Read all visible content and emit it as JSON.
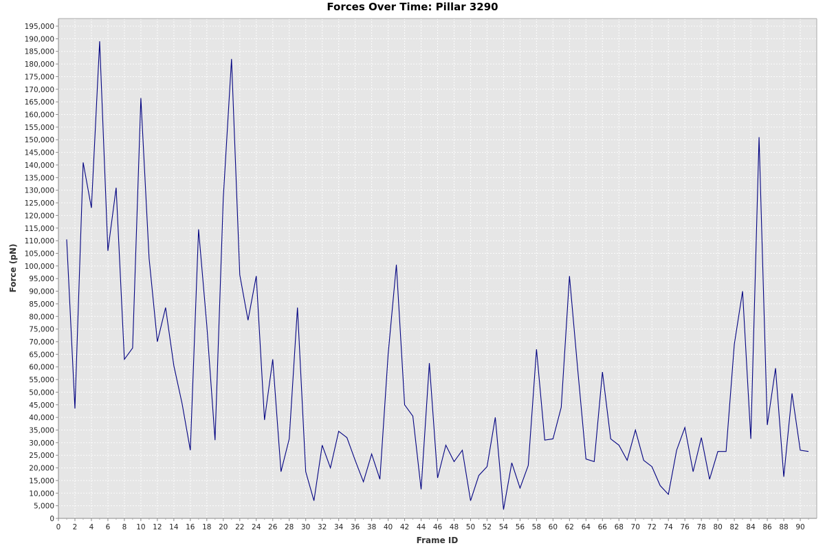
{
  "chart_data": {
    "type": "line",
    "title": "Forces Over Time: Pillar 3290",
    "xlabel": "Frame ID",
    "ylabel": "Force (pN)",
    "xlim": [
      0,
      92
    ],
    "ylim": [
      0,
      198000
    ],
    "x_ticks": [
      0,
      2,
      4,
      6,
      8,
      10,
      12,
      14,
      16,
      18,
      20,
      22,
      24,
      26,
      28,
      30,
      32,
      34,
      36,
      38,
      40,
      42,
      44,
      46,
      48,
      50,
      52,
      54,
      56,
      58,
      60,
      62,
      64,
      66,
      68,
      70,
      72,
      74,
      76,
      78,
      80,
      82,
      84,
      86,
      88,
      90
    ],
    "y_ticks": [
      0,
      5000,
      10000,
      15000,
      20000,
      25000,
      30000,
      35000,
      40000,
      45000,
      50000,
      55000,
      60000,
      65000,
      70000,
      75000,
      80000,
      85000,
      90000,
      95000,
      100000,
      105000,
      110000,
      115000,
      120000,
      125000,
      130000,
      135000,
      140000,
      145000,
      150000,
      155000,
      160000,
      165000,
      170000,
      175000,
      180000,
      185000,
      190000,
      195000
    ],
    "grid": true,
    "colors": {
      "line": "#000080",
      "plot_bg": "#e6e6e6",
      "grid": "#ffffff"
    },
    "series": [
      {
        "name": "",
        "x": [
          1,
          2,
          3,
          4,
          5,
          6,
          7,
          8,
          9,
          10,
          11,
          12,
          13,
          14,
          15,
          16,
          17,
          18,
          19,
          20,
          21,
          22,
          23,
          24,
          25,
          26,
          27,
          28,
          29,
          30,
          31,
          32,
          33,
          34,
          35,
          36,
          37,
          38,
          39,
          40,
          41,
          42,
          43,
          44,
          45,
          46,
          47,
          48,
          49,
          50,
          51,
          52,
          53,
          54,
          55,
          56,
          57,
          58,
          59,
          60,
          61,
          62,
          63,
          64,
          65,
          66,
          67,
          68,
          69,
          70,
          71,
          72,
          73,
          74,
          75,
          76,
          77,
          78,
          79,
          80,
          81,
          82,
          83,
          84,
          85,
          86,
          87,
          88,
          89,
          90,
          91
        ],
        "values": [
          110500,
          43500,
          141000,
          123000,
          189000,
          106000,
          131000,
          63000,
          67500,
          166500,
          103000,
          70000,
          83500,
          60500,
          45500,
          27000,
          114500,
          76500,
          31000,
          127000,
          182000,
          96500,
          78500,
          96000,
          39000,
          63000,
          18500,
          31500,
          83500,
          18500,
          7000,
          29000,
          20000,
          34500,
          32000,
          23000,
          14500,
          25500,
          15500,
          65000,
          100500,
          45000,
          40500,
          11500,
          61500,
          16000,
          29000,
          22500,
          27000,
          7000,
          17000,
          20500,
          40000,
          3500,
          22000,
          12000,
          21000,
          67000,
          31000,
          31500,
          44000,
          96000,
          59000,
          23500,
          22500,
          58000,
          31500,
          29000,
          23000,
          35000,
          23000,
          20500,
          13000,
          9500,
          27000,
          36000,
          18500,
          32000,
          15500,
          26500,
          26500,
          69000,
          90000,
          31500,
          151000,
          37000,
          59500,
          16500,
          49500,
          27000,
          26500
        ]
      }
    ]
  }
}
